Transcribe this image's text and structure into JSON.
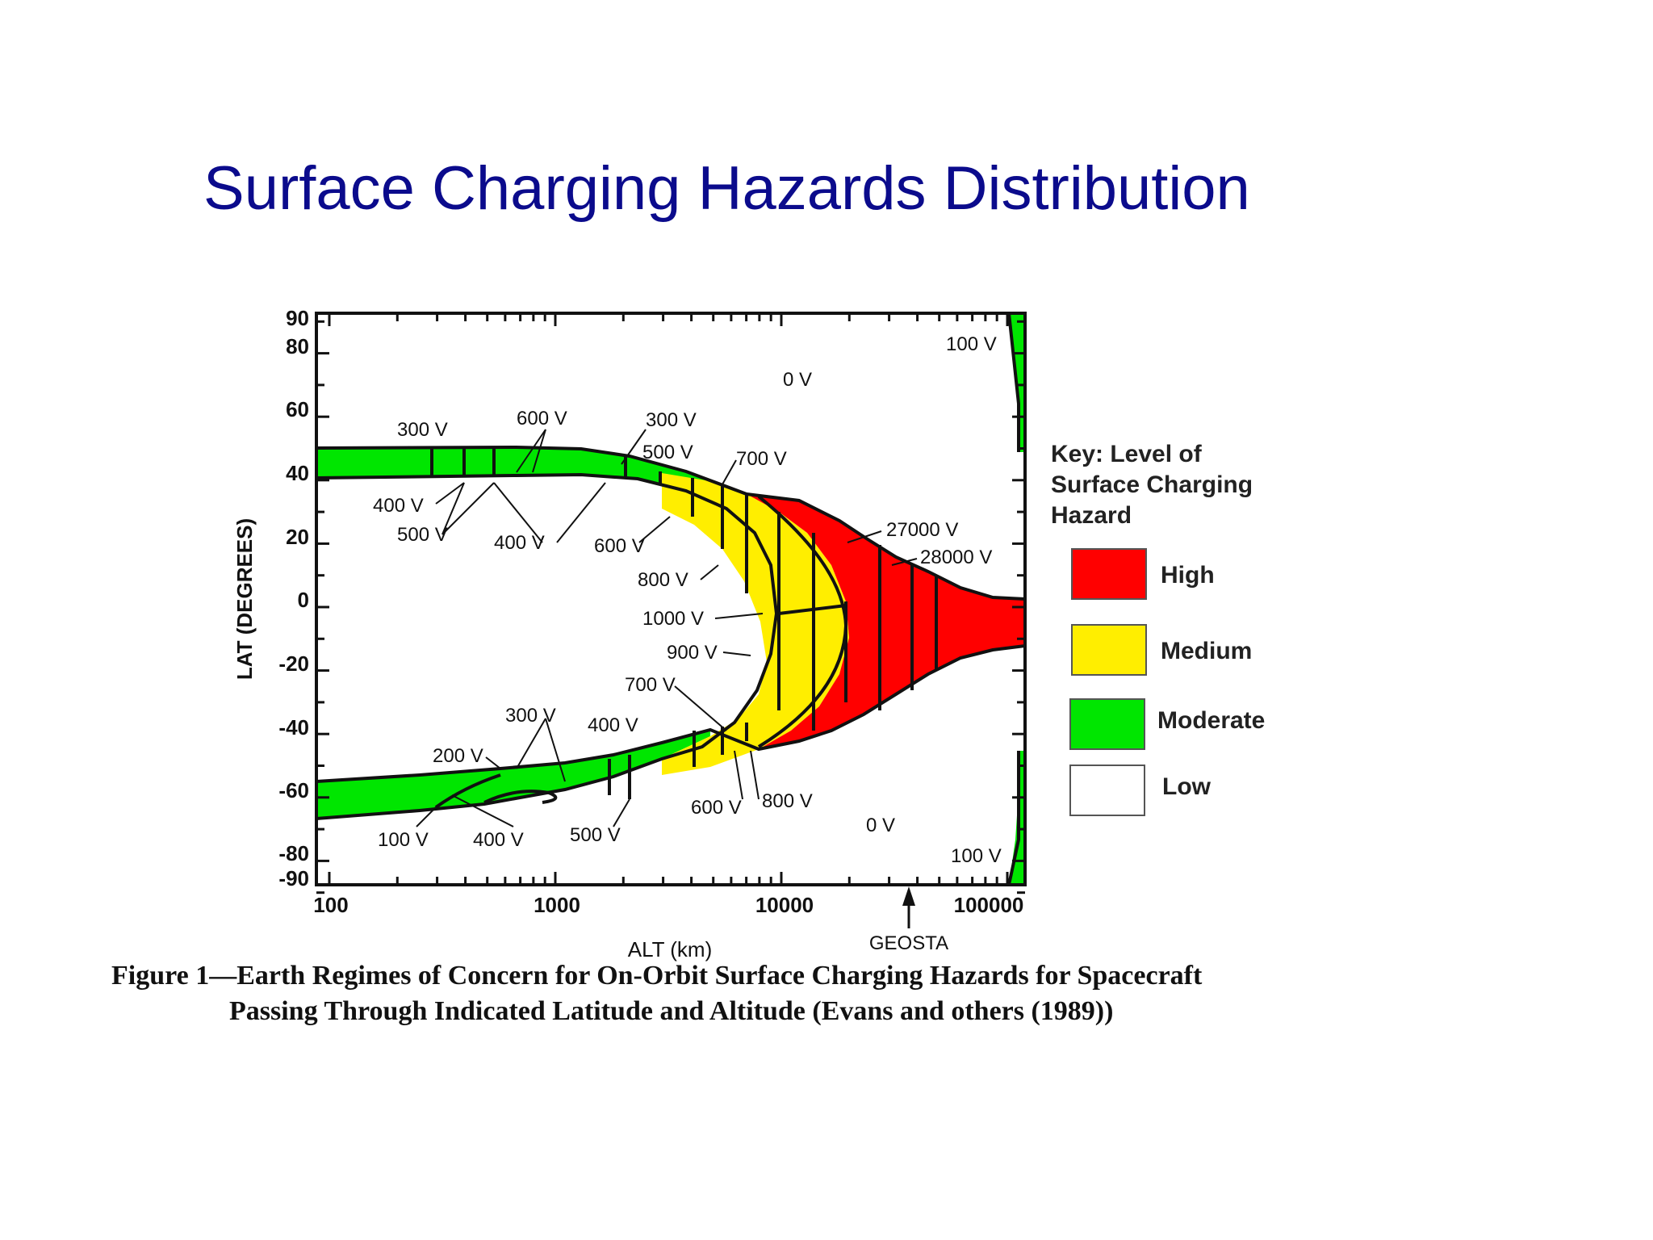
{
  "slide": {
    "title": "Surface Charging Hazards Distribution"
  },
  "figure": {
    "y_axis_label": "LAT (DEGREES)",
    "x_axis_label": "ALT (km)",
    "y_ticks": [
      "90",
      "80",
      "60",
      "40",
      "20",
      "0",
      "-20",
      "-40",
      "-60",
      "-80",
      "-90"
    ],
    "x_ticks": [
      "100",
      "1000",
      "10000",
      "100000"
    ],
    "geosta_label": "GEOSTA",
    "contour_labels": {
      "c0v_top": "0 V",
      "c0v_bottom": "0 V",
      "c100v_top_right": "100 V",
      "c100v_bottom_right": "100 V",
      "c300v_left": "300 V",
      "c600v_top": "600 V",
      "c300v_top": "300 V",
      "c500v_top": "500 V",
      "c700v_top": "700 V",
      "c400v_left": "400 V",
      "c500v_left": "500 V",
      "c400v_mid": "400 V",
      "c600v_mid": "600 V",
      "c27000v": "27000 V",
      "c28000v": "28000 V",
      "c800v_inner": "800 V",
      "c1000v_inner": "1000 V",
      "c900v_inner": "900 V",
      "c700v_inner": "700 V",
      "c300v_low": "300 V",
      "c400v_low": "400 V",
      "c200v_low": "200 V",
      "c100v_low": "100 V",
      "c400v_bottom": "400 V",
      "c500v_bottom": "500 V",
      "c600v_bottom": "600 V",
      "c800v_bottom": "800 V"
    },
    "key": {
      "title_line1": "Key: Level of",
      "title_line2": "Surface Charging",
      "title_line3": "Hazard",
      "items": [
        {
          "label": "High",
          "color": "#ff0000"
        },
        {
          "label": "Medium",
          "color": "#ffee00"
        },
        {
          "label": "Moderate",
          "color": "#00e600"
        },
        {
          "label": "Low",
          "color": "#ffffff"
        }
      ]
    },
    "caption_line1": "Figure 1—Earth Regimes of Concern for On-Orbit Surface Charging Hazards for Spacecraft",
    "caption_line2": "Passing Through Indicated Latitude and Altitude (Evans and others (1989))"
  }
}
